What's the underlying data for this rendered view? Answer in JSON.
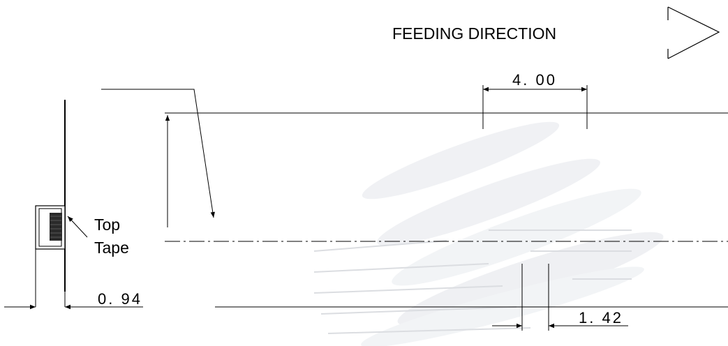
{
  "header": {
    "feeding_direction": "FEEDING DIRECTION"
  },
  "labels": {
    "top": "Top",
    "tape": "Tape"
  },
  "dimensions": {
    "pitch": "4. 00",
    "tape_thickness": "0. 94",
    "hole_offset": "1. 42"
  },
  "colors": {
    "line": "#000000",
    "background": "#ffffff",
    "watermark": "#dfe3ea"
  }
}
